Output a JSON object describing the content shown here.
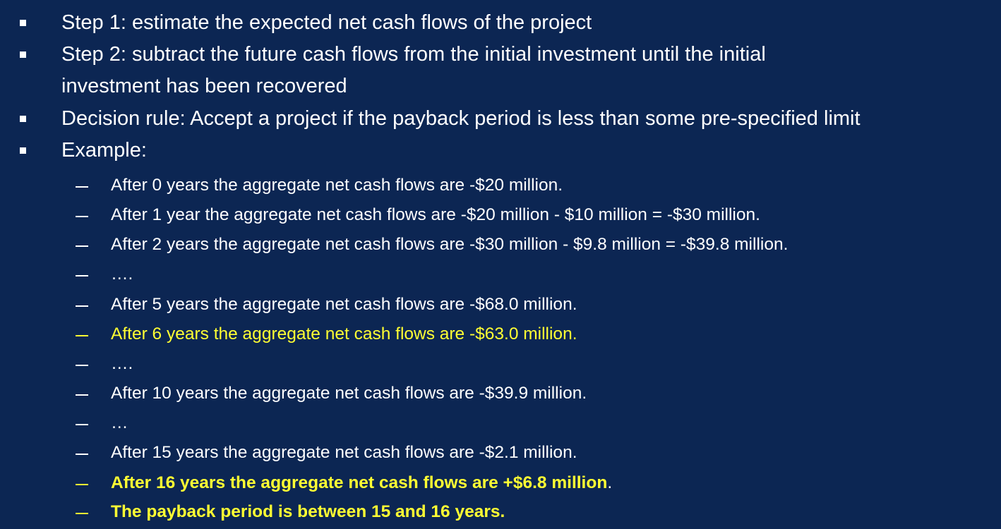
{
  "bullets": [
    "Step 1: estimate the expected net cash flows of the project",
    "Step 2: subtract the future cash flows from the initial investment until the initial",
    "investment has been recovered",
    "Decision rule: Accept a project if the payback period is less than some pre-specified limit",
    "Example:"
  ],
  "sub_items": [
    "After 0 years the aggregate net cash flows are -$20 million.",
    "After 1 year the aggregate net cash flows are -$20 million - $10 million = -$30 million.",
    "After 2 years the aggregate net cash flows are -$30 million - $9.8 million = -$39.8 million.",
    "….",
    "After 5 years the aggregate net cash flows are -$68.0 million.",
    "After 6 years the aggregate net cash flows are -$63.0 million.",
    "….",
    "After 10 years the aggregate net cash flows are -$39.9 million.",
    "…",
    "After 15 years the aggregate net cash flows are -$2.1 million.",
    "After 16 years the aggregate net cash flows are +$6.8 million",
    ".",
    "The payback period is between 15 and 16 years."
  ],
  "colors": {
    "background": "#0c2653",
    "text": "#ffffff",
    "highlight": "#ffff33"
  }
}
